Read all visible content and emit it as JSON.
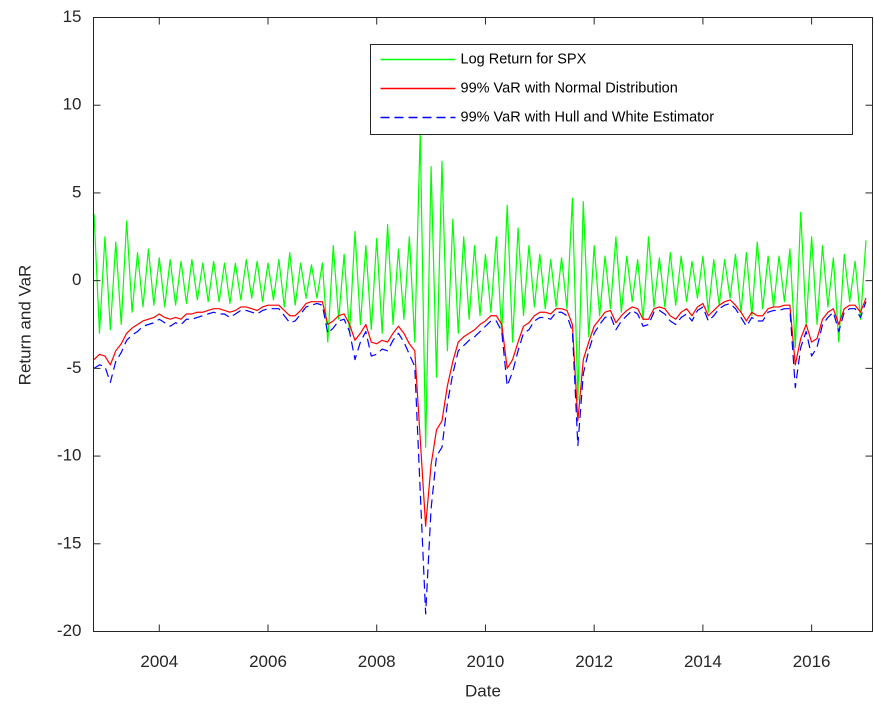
{
  "chart_data": {
    "type": "line",
    "x_label": "Date",
    "y_label": "Return and VaR",
    "xlim": [
      2002.79,
      2017.12
    ],
    "xticks": [
      2004,
      2006,
      2008,
      2010,
      2012,
      2014,
      2016
    ],
    "ylim": [
      -20,
      15
    ],
    "yticks": [
      -20,
      -15,
      -10,
      -5,
      0,
      5,
      10,
      15
    ],
    "grid": false,
    "legend": "northeast",
    "x": [
      2002.8,
      2002.9,
      2003,
      2003.1,
      2003.2,
      2003.3,
      2003.4,
      2003.5,
      2003.6,
      2003.7,
      2003.8,
      2003.9,
      2004,
      2004.1,
      2004.2,
      2004.3,
      2004.4,
      2004.5,
      2004.6,
      2004.7,
      2004.8,
      2004.9,
      2005,
      2005.1,
      2005.2,
      2005.3,
      2005.4,
      2005.5,
      2005.6,
      2005.7,
      2005.8,
      2005.9,
      2006,
      2006.1,
      2006.2,
      2006.3,
      2006.4,
      2006.5,
      2006.6,
      2006.7,
      2006.8,
      2006.9,
      2007,
      2007.1,
      2007.2,
      2007.3,
      2007.4,
      2007.5,
      2007.6,
      2007.7,
      2007.8,
      2007.9,
      2008,
      2008.1,
      2008.2,
      2008.3,
      2008.4,
      2008.5,
      2008.6,
      2008.7,
      2008.8,
      2008.9,
      2009,
      2009.1,
      2009.2,
      2009.3,
      2009.4,
      2009.5,
      2009.6,
      2009.7,
      2009.8,
      2009.9,
      2010,
      2010.1,
      2010.2,
      2010.3,
      2010.4,
      2010.5,
      2010.6,
      2010.7,
      2010.8,
      2010.9,
      2011,
      2011.1,
      2011.2,
      2011.3,
      2011.4,
      2011.5,
      2011.6,
      2011.7,
      2011.8,
      2011.9,
      2012,
      2012.1,
      2012.2,
      2012.3,
      2012.4,
      2012.5,
      2012.6,
      2012.7,
      2012.8,
      2012.9,
      2013,
      2013.1,
      2013.2,
      2013.3,
      2013.4,
      2013.5,
      2013.6,
      2013.7,
      2013.8,
      2013.9,
      2014,
      2014.1,
      2014.2,
      2014.3,
      2014.4,
      2014.5,
      2014.6,
      2014.7,
      2014.8,
      2014.9,
      2015,
      2015.1,
      2015.2,
      2015.3,
      2015.4,
      2015.5,
      2015.6,
      2015.7,
      2015.8,
      2015.9,
      2016,
      2016.1,
      2016.2,
      2016.3,
      2016.4,
      2016.5,
      2016.6,
      2016.7,
      2016.8,
      2016.9,
      2017
    ],
    "series": [
      {
        "name": "Log Return for SPX",
        "color": "#00ff00",
        "dash": false,
        "values": [
          3.8,
          -3.0,
          2.5,
          -2.8,
          2.2,
          -2.5,
          3.4,
          -1.8,
          1.6,
          -1.5,
          1.8,
          -1.4,
          1.3,
          -1.5,
          1.2,
          -1.4,
          1.1,
          -1.3,
          1.2,
          -1.1,
          1.0,
          -1.2,
          1.1,
          -1.2,
          1.0,
          -1.3,
          1.0,
          -1.1,
          1.2,
          -1.0,
          1.1,
          -1.2,
          1.0,
          -1.1,
          1.2,
          -1.5,
          1.6,
          -1.4,
          1.0,
          -1.0,
          0.9,
          -1.0,
          1.0,
          -3.5,
          2.0,
          -2.2,
          1.5,
          -3.0,
          2.8,
          -2.5,
          2.0,
          -2.8,
          2.4,
          -3.0,
          3.2,
          -2.5,
          1.8,
          -2.2,
          2.5,
          -3.5,
          8.5,
          -9.5,
          6.5,
          -5.5,
          6.8,
          -4.0,
          3.5,
          -3.0,
          2.5,
          -2.2,
          2.0,
          -2.0,
          1.5,
          -1.8,
          2.5,
          -3.0,
          4.3,
          -3.5,
          3.0,
          -2.0,
          2.0,
          -1.5,
          1.5,
          -1.6,
          1.2,
          -1.5,
          1.3,
          -1.6,
          4.7,
          -6.8,
          4.5,
          -3.2,
          2.0,
          -2.0,
          1.4,
          -1.6,
          2.5,
          -1.8,
          1.4,
          -1.2,
          1.2,
          -2.2,
          2.5,
          -1.5,
          1.3,
          -1.5,
          1.6,
          -1.4,
          1.4,
          -1.2,
          1.1,
          -1.0,
          1.4,
          -1.8,
          1.2,
          -1.4,
          1.2,
          -1.0,
          1.5,
          -1.8,
          1.6,
          -2.0,
          2.2,
          -1.6,
          1.4,
          -1.5,
          1.4,
          -1.2,
          1.8,
          -3.8,
          3.9,
          -2.5,
          2.5,
          -2.5,
          2.0,
          -1.5,
          1.3,
          -3.5,
          1.5,
          -1.2,
          1.1,
          -2.2,
          2.3
        ]
      },
      {
        "name": "99% VaR with Normal Distribution",
        "color": "#ff0000",
        "dash": false,
        "values": [
          -4.5,
          -4.2,
          -4.3,
          -4.8,
          -4.0,
          -3.6,
          -3.0,
          -2.7,
          -2.5,
          -2.3,
          -2.2,
          -2.1,
          -1.9,
          -2.1,
          -2.2,
          -2.1,
          -2.2,
          -1.9,
          -1.9,
          -1.8,
          -1.8,
          -1.7,
          -1.6,
          -1.6,
          -1.7,
          -1.8,
          -1.7,
          -1.5,
          -1.5,
          -1.6,
          -1.7,
          -1.5,
          -1.4,
          -1.4,
          -1.4,
          -1.7,
          -2.0,
          -2.0,
          -1.7,
          -1.3,
          -1.2,
          -1.2,
          -1.2,
          -2.5,
          -2.3,
          -2.0,
          -1.9,
          -2.5,
          -3.4,
          -3.0,
          -2.5,
          -3.5,
          -3.6,
          -3.4,
          -3.5,
          -3.0,
          -2.6,
          -3.0,
          -3.6,
          -4.0,
          -9.0,
          -14.0,
          -10.5,
          -8.5,
          -8.0,
          -6.0,
          -4.6,
          -3.5,
          -3.2,
          -3.0,
          -2.8,
          -2.5,
          -2.3,
          -2.0,
          -2.0,
          -2.5,
          -5.0,
          -4.5,
          -3.5,
          -2.6,
          -2.4,
          -2.0,
          -1.8,
          -1.8,
          -1.9,
          -1.6,
          -1.6,
          -1.7,
          -2.5,
          -8.0,
          -4.5,
          -3.5,
          -2.6,
          -2.2,
          -1.8,
          -1.7,
          -2.4,
          -2.0,
          -1.7,
          -1.5,
          -1.6,
          -2.2,
          -2.2,
          -1.6,
          -1.5,
          -1.6,
          -2.0,
          -2.2,
          -1.8,
          -1.6,
          -2.0,
          -1.5,
          -1.3,
          -2.0,
          -1.7,
          -1.4,
          -1.2,
          -1.1,
          -1.4,
          -1.8,
          -2.3,
          -1.8,
          -2.0,
          -2.0,
          -1.6,
          -1.5,
          -1.5,
          -1.4,
          -1.4,
          -4.8,
          -3.3,
          -2.5,
          -3.5,
          -3.3,
          -2.2,
          -1.8,
          -1.6,
          -2.5,
          -1.6,
          -1.4,
          -1.4,
          -1.8,
          -1.0
        ]
      },
      {
        "name": "99% VaR with Hull and White Estimator",
        "color": "#0000ff",
        "dash": true,
        "values": [
          -5.0,
          -4.8,
          -4.9,
          -5.8,
          -4.6,
          -4.1,
          -3.4,
          -3.1,
          -2.9,
          -2.6,
          -2.5,
          -2.4,
          -2.2,
          -2.4,
          -2.6,
          -2.4,
          -2.5,
          -2.2,
          -2.2,
          -2.1,
          -2.0,
          -1.9,
          -1.8,
          -1.9,
          -1.9,
          -2.1,
          -1.9,
          -1.7,
          -1.7,
          -1.8,
          -1.9,
          -1.7,
          -1.6,
          -1.6,
          -1.6,
          -2.0,
          -2.4,
          -2.3,
          -1.9,
          -1.5,
          -1.4,
          -1.3,
          -1.4,
          -3.0,
          -2.7,
          -2.3,
          -2.2,
          -2.9,
          -4.5,
          -3.5,
          -2.9,
          -4.3,
          -4.2,
          -3.9,
          -4.0,
          -3.4,
          -3.0,
          -3.5,
          -4.2,
          -4.9,
          -12.0,
          -19.0,
          -13.0,
          -10.0,
          -9.5,
          -7.0,
          -5.3,
          -4.0,
          -3.7,
          -3.4,
          -3.2,
          -2.9,
          -2.6,
          -2.3,
          -2.3,
          -2.9,
          -6.0,
          -5.2,
          -4.0,
          -3.0,
          -2.8,
          -2.3,
          -2.1,
          -2.1,
          -2.2,
          -1.8,
          -1.8,
          -2.0,
          -2.9,
          -9.4,
          -5.3,
          -4.0,
          -3.0,
          -2.5,
          -2.1,
          -2.0,
          -2.8,
          -2.3,
          -2.0,
          -1.7,
          -1.9,
          -2.6,
          -2.5,
          -1.8,
          -1.7,
          -1.9,
          -2.3,
          -2.5,
          -2.1,
          -1.9,
          -2.3,
          -1.7,
          -1.5,
          -2.3,
          -2.0,
          -1.6,
          -1.4,
          -1.3,
          -1.6,
          -2.1,
          -2.6,
          -2.1,
          -2.3,
          -2.3,
          -1.8,
          -1.7,
          -1.7,
          -1.6,
          -1.6,
          -6.1,
          -3.8,
          -2.9,
          -4.3,
          -3.8,
          -2.5,
          -2.1,
          -1.8,
          -2.9,
          -1.8,
          -1.6,
          -1.6,
          -2.1,
          -1.2
        ]
      }
    ]
  }
}
